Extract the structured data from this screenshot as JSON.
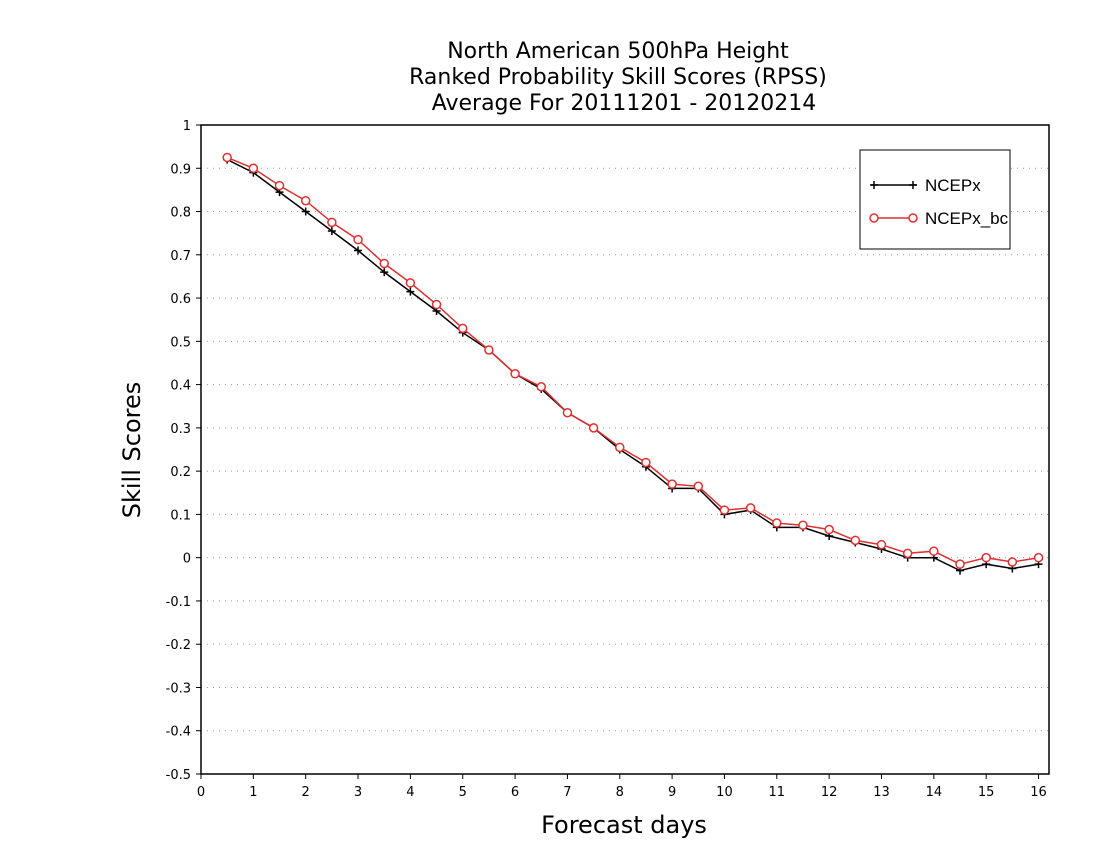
{
  "chart_data": {
    "type": "line",
    "title_lines": [
      "North American 500hPa Height",
      "Ranked Probability Skill Scores (RPSS)",
      "Average For 20111201 - 20120214"
    ],
    "xlabel": "Forecast days",
    "ylabel": "Skill Scores",
    "xlim": [
      0,
      16.2
    ],
    "ylim": [
      -0.5,
      1
    ],
    "x_ticks": [
      0,
      1,
      2,
      3,
      4,
      5,
      6,
      7,
      8,
      9,
      10,
      11,
      12,
      13,
      14,
      15,
      16
    ],
    "y_ticks": [
      1,
      0.9,
      0.8,
      0.7,
      0.6,
      0.5,
      0.4,
      0.3,
      0.2,
      0.1,
      0,
      -0.1,
      -0.2,
      -0.3,
      -0.4,
      -0.5
    ],
    "grid": "horizontal dotted",
    "legend_position": "top-right",
    "x": [
      0.5,
      1,
      1.5,
      2,
      2.5,
      3,
      3.5,
      4,
      4.5,
      5,
      5.5,
      6,
      6.5,
      7,
      7.5,
      8,
      8.5,
      9,
      9.5,
      10,
      10.5,
      11,
      11.5,
      12,
      12.5,
      13,
      13.5,
      14,
      14.5,
      15,
      15.5,
      16
    ],
    "series": [
      {
        "name": "NCEPx",
        "color": "#000000",
        "marker": "plus",
        "values": [
          0.92,
          0.89,
          0.845,
          0.8,
          0.755,
          0.71,
          0.66,
          0.615,
          0.57,
          0.52,
          0.48,
          0.425,
          0.39,
          0.335,
          0.3,
          0.25,
          0.21,
          0.16,
          0.16,
          0.1,
          0.11,
          0.07,
          0.07,
          0.05,
          0.035,
          0.02,
          0.0,
          0.0,
          -0.03,
          -0.015,
          -0.025,
          -0.015
        ]
      },
      {
        "name": "NCEPx_bc",
        "color": "#e03030",
        "marker": "circle",
        "values": [
          0.925,
          0.9,
          0.86,
          0.825,
          0.775,
          0.735,
          0.68,
          0.635,
          0.585,
          0.53,
          0.48,
          0.425,
          0.395,
          0.335,
          0.3,
          0.255,
          0.22,
          0.17,
          0.165,
          0.11,
          0.115,
          0.08,
          0.075,
          0.065,
          0.04,
          0.03,
          0.01,
          0.015,
          -0.015,
          0.0,
          -0.01,
          0.0
        ]
      }
    ]
  }
}
